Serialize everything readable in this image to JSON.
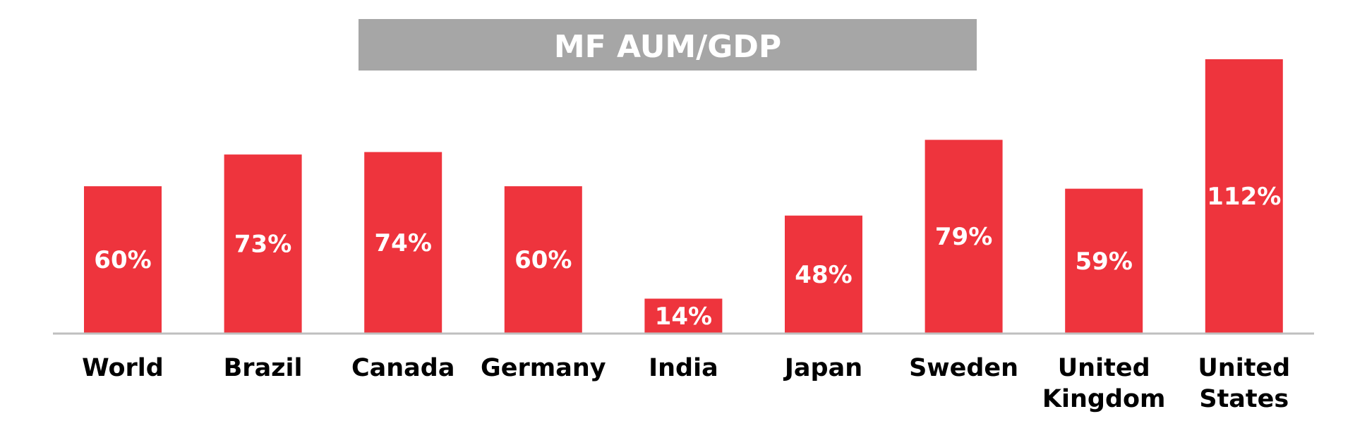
{
  "chart_data": {
    "type": "bar",
    "title": "MF AUM/GDP",
    "categories": [
      "World",
      "Brazil",
      "Canada",
      "Germany",
      "India",
      "Japan",
      "Sweden",
      "United Kingdom",
      "United States"
    ],
    "values": [
      60,
      73,
      74,
      60,
      14,
      48,
      79,
      59,
      112
    ],
    "data_labels": [
      "60%",
      "73%",
      "74%",
      "60%",
      "14%",
      "48%",
      "79%",
      "59%",
      "112%"
    ],
    "value_unit": "%",
    "xlabel": "",
    "ylabel": "",
    "ylim": [
      0,
      112
    ],
    "grid": false,
    "legend": "none",
    "colors": {
      "bar": "#ee343d",
      "title_background": "#a6a6a6",
      "title_text": "#ffffff",
      "baseline": "#bfbfbf",
      "category_text": "#000000"
    }
  }
}
